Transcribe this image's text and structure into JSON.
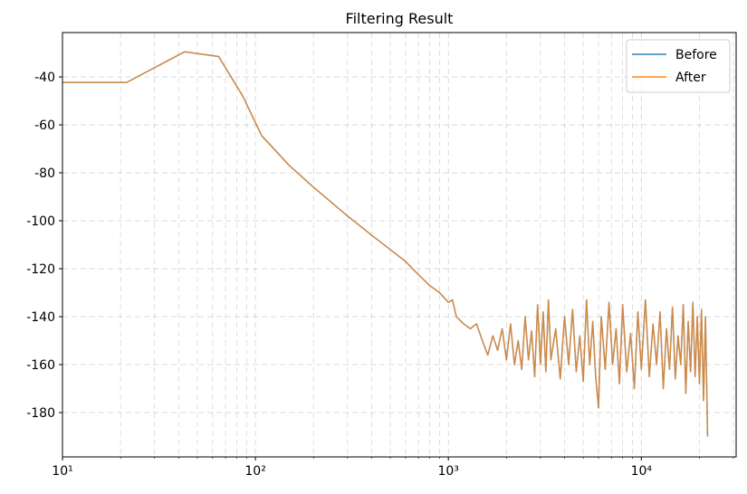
{
  "chart_data": {
    "type": "line",
    "title": "Filtering Result",
    "x": [
      10,
      21.5,
      43,
      64.5,
      86,
      107.7,
      150,
      200,
      300,
      400,
      500,
      600,
      700,
      800,
      900,
      1000,
      1050,
      1100,
      1200,
      1300,
      1400,
      1500,
      1600,
      1700,
      1800,
      1900,
      2000,
      2100,
      2200,
      2300,
      2400,
      2500,
      2600,
      2700,
      2800,
      2900,
      3000,
      3100,
      3200,
      3300,
      3400,
      3600,
      3800,
      4000,
      4200,
      4400,
      4600,
      4800,
      5000,
      5200,
      5400,
      5600,
      5800,
      6000,
      6200,
      6500,
      6800,
      7100,
      7400,
      7700,
      8000,
      8400,
      8800,
      9200,
      9600,
      10000,
      10500,
      11000,
      11500,
      12000,
      12500,
      13000,
      13500,
      14000,
      14500,
      15000,
      15500,
      16000,
      16500,
      17000,
      17500,
      18000,
      18500,
      19000,
      19500,
      20000,
      20500,
      21000,
      21500,
      22050
    ],
    "series": [
      {
        "name": "Before",
        "color": "#1f77b4",
        "values": [
          -42.3,
          -42.3,
          -29.5,
          -31.5,
          -48,
          -64.5,
          -77,
          -86,
          -98,
          -106,
          -112,
          -117,
          -122.5,
          -127,
          -130,
          -134,
          -133,
          -140,
          -143,
          -145,
          -143,
          -150,
          -156,
          -148,
          -154,
          -145,
          -158,
          -143,
          -160,
          -150,
          -162,
          -140,
          -158,
          -146,
          -165,
          -135,
          -160,
          -138,
          -163,
          -133,
          -158,
          -145,
          -166,
          -140,
          -160,
          -137,
          -163,
          -148,
          -167,
          -133,
          -160,
          -142,
          -165,
          -178,
          -140,
          -162,
          -134,
          -160,
          -145,
          -168,
          -135,
          -163,
          -147,
          -170,
          -138,
          -162,
          -133,
          -165,
          -143,
          -160,
          -138,
          -170,
          -145,
          -162,
          -136,
          -166,
          -148,
          -160,
          -135,
          -172,
          -142,
          -163,
          -134,
          -165,
          -140,
          -168,
          -137,
          -175,
          -140,
          -190
        ]
      },
      {
        "name": "After",
        "color": "#ff7f0e",
        "values": [
          -42.3,
          -42.3,
          -29.5,
          -31.5,
          -48,
          -64.5,
          -77,
          -86,
          -98,
          -106,
          -112,
          -117,
          -122.5,
          -127,
          -130,
          -134,
          -133,
          -140,
          -143,
          -145,
          -143,
          -150,
          -156,
          -148,
          -154,
          -145,
          -158,
          -143,
          -160,
          -150,
          -162,
          -140,
          -158,
          -146,
          -165,
          -135,
          -160,
          -138,
          -163,
          -133,
          -158,
          -145,
          -166,
          -140,
          -160,
          -137,
          -163,
          -148,
          -167,
          -133,
          -160,
          -142,
          -165,
          -178,
          -140,
          -162,
          -134,
          -160,
          -145,
          -168,
          -135,
          -163,
          -147,
          -170,
          -138,
          -162,
          -133,
          -165,
          -143,
          -160,
          -138,
          -170,
          -145,
          -162,
          -136,
          -166,
          -148,
          -160,
          -135,
          -172,
          -142,
          -163,
          -134,
          -165,
          -140,
          -168,
          -137,
          -175,
          -140,
          -190
        ]
      }
    ],
    "xlog": true,
    "xlim": [
      10,
      31000
    ],
    "ylim": [
      -198.5,
      -21.5
    ],
    "xticks": [
      {
        "value": 10,
        "label": "10¹"
      },
      {
        "value": 100,
        "label": "10²"
      },
      {
        "value": 1000,
        "label": "10³"
      },
      {
        "value": 10000,
        "label": "10⁴"
      }
    ],
    "xminorticks": [
      20,
      30,
      40,
      50,
      60,
      70,
      80,
      90,
      200,
      300,
      400,
      500,
      600,
      700,
      800,
      900,
      2000,
      3000,
      4000,
      5000,
      6000,
      7000,
      8000,
      9000,
      20000,
      30000
    ],
    "yticks": [
      -180,
      -160,
      -140,
      -120,
      -100,
      -80,
      -60,
      -40
    ],
    "grid": true,
    "legend": "upper right"
  }
}
